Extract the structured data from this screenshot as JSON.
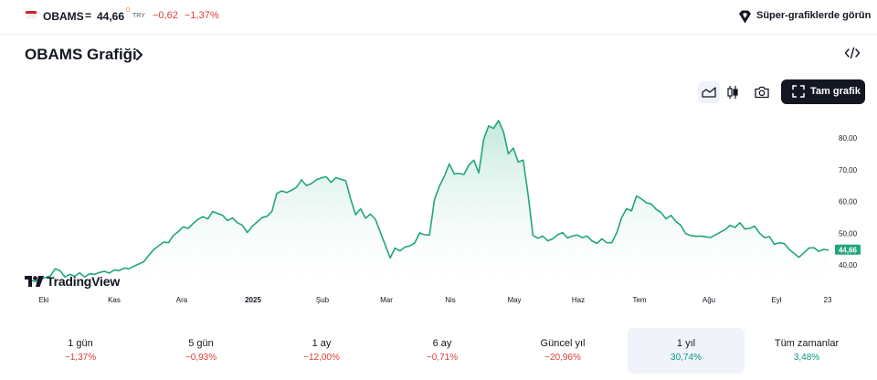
{
  "topbar": {
    "symbol": "OBAMS",
    "equals": "=",
    "price": "44,66",
    "price_sup": "0",
    "currency": "TRY",
    "change": "−0,62",
    "change_pct": "−1,37%",
    "super_charts_label": "Süper-grafiklerde görün",
    "flag_icon": "flag-icon",
    "diamond_icon": "diamond-icon"
  },
  "header": {
    "title": "OBAMS Grafiği",
    "chevron_icon": "chevron-right-icon",
    "embed_icon": "code-embed-icon"
  },
  "toolbar": {
    "area_icon": "area-chart-icon",
    "candle_icon": "candlestick-icon",
    "camera_icon": "camera-icon",
    "fullscreen_icon": "fullscreen-icon",
    "fullscreen_label": "Tam grafik"
  },
  "chart_data": {
    "type": "area",
    "color_line": "#22a67b",
    "color_fill_top": "#bfe7d8",
    "color_fill_bottom": "#ffffff",
    "yticks": [
      "80,00",
      "70,00",
      "60,00",
      "50,00",
      "40,00"
    ],
    "ytick_values": [
      80,
      70,
      60,
      50,
      40
    ],
    "xticks": [
      "Eki",
      "Kas",
      "Ara",
      "2025",
      "Şub",
      "Mar",
      "Nis",
      "May",
      "Haz",
      "Tem",
      "Ağu",
      "Eyl",
      "23"
    ],
    "xtick_bold": [
      false,
      false,
      false,
      true,
      false,
      false,
      false,
      false,
      false,
      false,
      false,
      false,
      false
    ],
    "last_value_label": "44,66",
    "last_value": 44.66,
    "ylim": [
      29.5,
      88
    ],
    "grid": false,
    "series": [
      {
        "values": [
          36.0,
          35.2,
          34.8,
          35.5,
          36.0,
          36.5,
          38.8,
          38.2,
          36.2,
          37.0,
          36.4,
          37.5,
          36.2,
          37.2,
          37.0,
          37.6,
          38.0,
          37.4,
          38.4,
          38.2,
          39.0,
          38.8,
          39.6,
          40.3,
          41.0,
          43.0,
          44.8,
          46.0,
          47.2,
          47.0,
          49.3,
          50.5,
          52.0,
          51.5,
          53.0,
          54.3,
          55.2,
          54.5,
          56.8,
          56.2,
          55.6,
          54.0,
          54.8,
          53.3,
          52.5,
          50.2,
          52.2,
          53.5,
          54.9,
          55.3,
          56.8,
          62.5,
          63.3,
          62.8,
          63.5,
          64.5,
          66.8,
          65.0,
          65.6,
          66.8,
          67.4,
          67.8,
          66.0,
          67.5,
          67.0,
          66.5,
          60.7,
          55.8,
          57.7,
          54.7,
          56.0,
          54.4,
          50.3,
          46.3,
          42.2,
          45.3,
          44.4,
          45.6,
          46.0,
          46.9,
          50.1,
          49.5,
          49.4,
          60.6,
          64.8,
          67.9,
          71.8,
          68.7,
          68.8,
          68.5,
          71.5,
          73.0,
          69.0,
          79.6,
          83.8,
          83.0,
          85.5,
          82.0,
          75.0,
          76.8,
          72.4,
          73.0,
          62.3,
          49.3,
          48.4,
          49.1,
          47.6,
          48.2,
          49.5,
          50.2,
          48.5,
          49.1,
          49.4,
          48.6,
          49.1,
          47.5,
          46.8,
          48.2,
          47.0,
          47.0,
          50.1,
          54.9,
          57.7,
          57.0,
          61.7,
          60.8,
          59.6,
          59.2,
          57.5,
          56.5,
          54.5,
          55.6,
          53.7,
          52.5,
          49.8,
          49.3,
          49.0,
          49.1,
          48.9,
          48.6,
          49.4,
          50.3,
          51.1,
          52.5,
          51.8,
          53.3,
          51.3,
          51.5,
          52.2,
          50.0,
          48.6,
          48.9,
          46.5,
          47.0,
          46.7,
          44.9,
          43.6,
          42.4,
          43.8,
          45.3,
          45.4,
          44.3,
          44.9,
          44.66
        ]
      }
    ]
  },
  "watermark": {
    "text": "TradingView",
    "logo_icon": "tradingview-logo-icon"
  },
  "periods": [
    {
      "label": "1 gün",
      "value": "−1,37%",
      "sign": "neg"
    },
    {
      "label": "5 gün",
      "value": "−0,93%",
      "sign": "neg"
    },
    {
      "label": "1 ay",
      "value": "−12,00%",
      "sign": "neg"
    },
    {
      "label": "6 ay",
      "value": "−0,71%",
      "sign": "neg"
    },
    {
      "label": "Güncel yıl",
      "value": "−20,96%",
      "sign": "neg"
    },
    {
      "label": "1 yıl",
      "value": "30,74%",
      "sign": "pos",
      "active": true
    },
    {
      "label": "Tüm zamanlar",
      "value": "3,48%",
      "sign": "pos"
    }
  ]
}
